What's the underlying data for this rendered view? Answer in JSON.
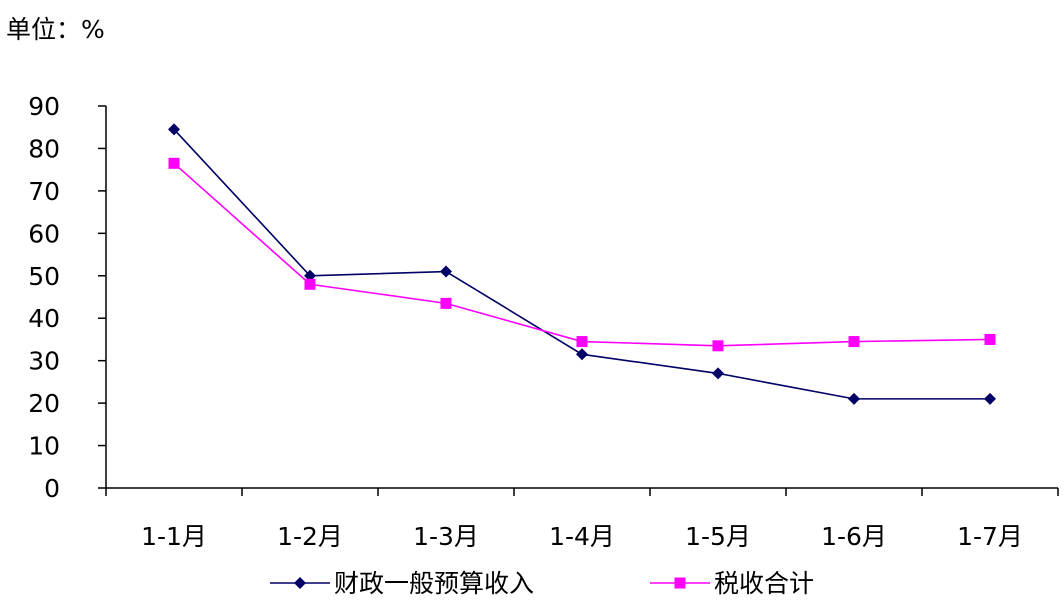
{
  "unit_label": "单位：%",
  "chart_data": {
    "type": "line",
    "categories": [
      "1-1月",
      "1-2月",
      "1-3月",
      "1-4月",
      "1-5月",
      "1-6月",
      "1-7月"
    ],
    "ylim": [
      0,
      90
    ],
    "yticks": [
      0,
      10,
      20,
      30,
      40,
      50,
      60,
      70,
      80,
      90
    ],
    "grid": false,
    "legend_position": "bottom",
    "title": "",
    "xlabel": "",
    "ylabel": "",
    "series": [
      {
        "name": "财政一般预算收入",
        "values": [
          84.5,
          50.0,
          51.0,
          31.5,
          27.0,
          21.0,
          21.0
        ],
        "color": "#000066",
        "marker": "diamond"
      },
      {
        "name": "税收合计",
        "values": [
          76.5,
          48.0,
          43.5,
          34.5,
          33.5,
          34.5,
          35.0
        ],
        "color": "#ff00ff",
        "marker": "square"
      }
    ]
  }
}
